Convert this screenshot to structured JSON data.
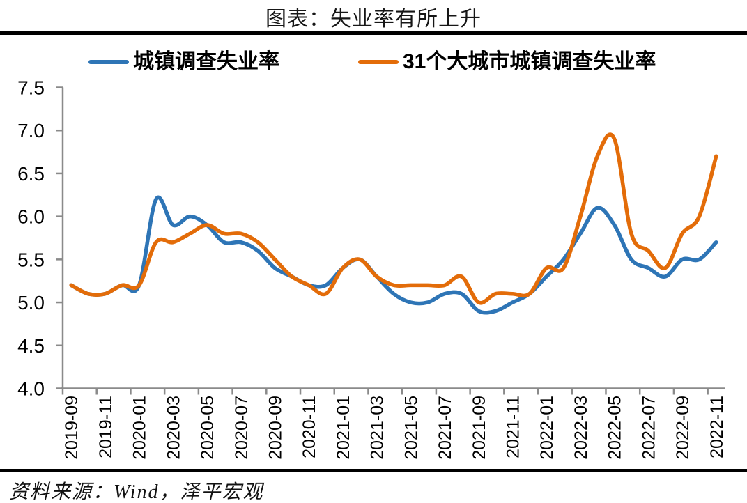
{
  "title": "图表：失业率有所上升",
  "source_note": "资料来源：Wind，泽平宏观",
  "colors": {
    "series1": "#2E75B6",
    "series2": "#E36C09",
    "axis": "#8A8A8A",
    "rule": "#000000",
    "text": "#000000"
  },
  "chart_data": {
    "type": "line",
    "title": "图表：失业率有所上升",
    "xlabel": "",
    "ylabel": "",
    "ylim": [
      4.0,
      7.5
    ],
    "y_tick_step": 0.5,
    "y_tick_labels": [
      "4.0",
      "4.5",
      "5.0",
      "5.5",
      "6.0",
      "6.5",
      "7.0",
      "7.5"
    ],
    "x_label_step": 2,
    "grid": false,
    "smoothed": true,
    "legend_position": "top",
    "x": [
      "2019-09",
      "2019-10",
      "2019-11",
      "2019-12",
      "2020-01",
      "2020-02",
      "2020-03",
      "2020-04",
      "2020-05",
      "2020-06",
      "2020-07",
      "2020-08",
      "2020-09",
      "2020-10",
      "2020-11",
      "2020-12",
      "2021-01",
      "2021-02",
      "2021-03",
      "2021-04",
      "2021-05",
      "2021-06",
      "2021-07",
      "2021-08",
      "2021-09",
      "2021-10",
      "2021-11",
      "2021-12",
      "2022-01",
      "2022-02",
      "2022-03",
      "2022-04",
      "2022-05",
      "2022-06",
      "2022-07",
      "2022-08",
      "2022-09",
      "2022-10",
      "2022-11"
    ],
    "series": [
      {
        "name": "城镇调查失业率",
        "color": "#2E75B6",
        "values": [
          5.2,
          5.1,
          5.1,
          5.2,
          5.2,
          6.2,
          5.9,
          6.0,
          5.9,
          5.7,
          5.7,
          5.6,
          5.4,
          5.3,
          5.2,
          5.2,
          5.4,
          5.5,
          5.3,
          5.1,
          5.0,
          5.0,
          5.1,
          5.1,
          4.9,
          4.9,
          5.0,
          5.1,
          5.3,
          5.5,
          5.8,
          6.1,
          5.9,
          5.5,
          5.4,
          5.3,
          5.5,
          5.5,
          5.7
        ]
      },
      {
        "name": "31个大城市城镇调查失业率",
        "color": "#E36C09",
        "values": [
          5.2,
          5.1,
          5.1,
          5.2,
          5.2,
          5.7,
          5.7,
          5.8,
          5.9,
          5.8,
          5.8,
          5.7,
          5.5,
          5.3,
          5.2,
          5.1,
          5.4,
          5.5,
          5.3,
          5.2,
          5.2,
          5.2,
          5.2,
          5.3,
          5.0,
          5.1,
          5.1,
          5.1,
          5.4,
          5.4,
          6.0,
          6.7,
          6.9,
          5.8,
          5.6,
          5.4,
          5.8,
          6.0,
          6.7
        ]
      }
    ]
  }
}
